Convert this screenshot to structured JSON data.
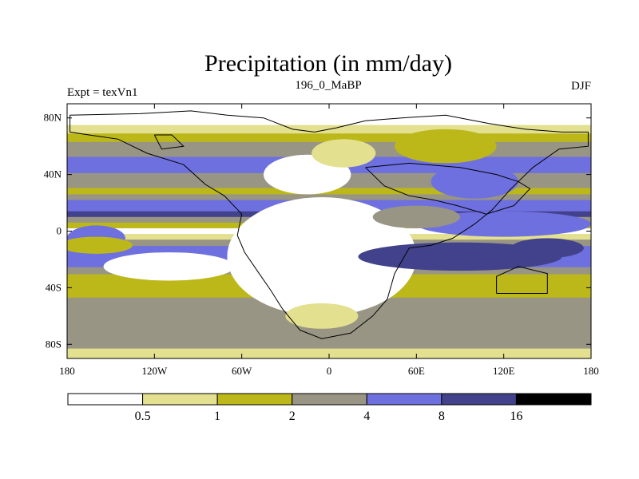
{
  "chart_data": {
    "type": "heatmap",
    "title": "Precipitation (in mm/day)",
    "left_label": "Expt = texVn1",
    "center_label": "196_0_MaBP",
    "right_label": "DJF",
    "x_ticks": [
      "180",
      "120W",
      "60W",
      "0",
      "60E",
      "120E",
      "180"
    ],
    "x_tick_values": [
      -180,
      -120,
      -60,
      0,
      60,
      120,
      180
    ],
    "y_ticks": [
      "80N",
      "40N",
      "0",
      "40S",
      "80S"
    ],
    "y_tick_values": [
      80,
      40,
      0,
      -40,
      -80
    ],
    "xlim": [
      -180,
      180
    ],
    "ylim": [
      -90,
      90
    ],
    "colorbar": {
      "levels": [
        "0.5",
        "1",
        "2",
        "4",
        "8",
        "16"
      ],
      "colors": [
        "#ffffff",
        "#e3e08f",
        "#bcb81a",
        "#999584",
        "#6f70e0",
        "#42428c",
        "#000000"
      ]
    },
    "bands": [
      {
        "lat": 85,
        "v": 0.3
      },
      {
        "lat": 78,
        "v": 0.4
      },
      {
        "lat": 72,
        "v": 0.8
      },
      {
        "lat": 66,
        "v": 1.5
      },
      {
        "lat": 60,
        "v": 2.5
      },
      {
        "lat": 55,
        "v": 3.2
      },
      {
        "lat": 50,
        "v": 4.5
      },
      {
        "lat": 44,
        "v": 6
      },
      {
        "lat": 38,
        "v": 3.5
      },
      {
        "lat": 33,
        "v": 2.2
      },
      {
        "lat": 28,
        "v": 1.4
      },
      {
        "lat": 24,
        "v": 2.5
      },
      {
        "lat": 20,
        "v": 4.5
      },
      {
        "lat": 16,
        "v": 6
      },
      {
        "lat": 12,
        "v": 10
      },
      {
        "lat": 8,
        "v": 3.5
      },
      {
        "lat": 4,
        "v": 1.5
      },
      {
        "lat": 0,
        "v": 0.4
      },
      {
        "lat": -4,
        "v": 0.8
      },
      {
        "lat": -8,
        "v": 3.5
      },
      {
        "lat": -13,
        "v": 5.5
      },
      {
        "lat": -18,
        "v": 6.5
      },
      {
        "lat": -23,
        "v": 5
      },
      {
        "lat": -28,
        "v": 2.5
      },
      {
        "lat": -33,
        "v": 1.5
      },
      {
        "lat": -38,
        "v": 1.2
      },
      {
        "lat": -44,
        "v": 1.5
      },
      {
        "lat": -50,
        "v": 2.5
      },
      {
        "lat": -56,
        "v": 3.5
      },
      {
        "lat": -62,
        "v": 3
      },
      {
        "lat": -68,
        "v": 2.5
      },
      {
        "lat": -74,
        "v": 3.5
      },
      {
        "lat": -80,
        "v": 2
      },
      {
        "lat": -86,
        "v": 0.8
      },
      {
        "lat": -90,
        "v": 0.6
      }
    ],
    "anomalies": [
      {
        "lon": -5,
        "lat": -18,
        "rlon": 65,
        "rlat": 42,
        "v": 0.2
      },
      {
        "lon": -15,
        "lat": 40,
        "rlon": 30,
        "rlat": 14,
        "v": 0.3
      },
      {
        "lon": -5,
        "lat": -60,
        "rlon": 25,
        "rlat": 9,
        "v": 0.9
      },
      {
        "lon": 90,
        "lat": -18,
        "rlon": 70,
        "rlat": 10,
        "v": 12
      },
      {
        "lon": 150,
        "lat": -12,
        "rlon": 25,
        "rlat": 7,
        "v": 12
      },
      {
        "lon": 120,
        "lat": 5,
        "rlon": 60,
        "rlat": 9,
        "v": 6
      },
      {
        "lon": 60,
        "lat": 10,
        "rlon": 30,
        "rlat": 8,
        "v": 2.5
      },
      {
        "lon": -110,
        "lat": -25,
        "rlon": 45,
        "rlat": 10,
        "v": 0.3
      },
      {
        "lon": -160,
        "lat": -5,
        "rlon": 20,
        "rlat": 9,
        "v": 4
      },
      {
        "lon": 100,
        "lat": 35,
        "rlon": 30,
        "rlat": 12,
        "v": 5.5
      },
      {
        "lon": 80,
        "lat": 60,
        "rlon": 35,
        "rlat": 12,
        "v": 1.5
      },
      {
        "lon": 10,
        "lat": 55,
        "rlon": 22,
        "rlat": 10,
        "v": 0.8
      },
      {
        "lon": -160,
        "lat": -10,
        "rlon": 25,
        "rlat": 6,
        "v": 1.5
      }
    ],
    "continent_outlines": [
      [
        [
          -130,
          83
        ],
        [
          -95,
          85
        ],
        [
          -70,
          82
        ],
        [
          -45,
          80
        ],
        [
          -25,
          72
        ],
        [
          -10,
          70
        ],
        [
          5,
          73
        ],
        [
          25,
          78
        ],
        [
          50,
          80
        ],
        [
          80,
          82
        ],
        [
          110,
          76
        ],
        [
          135,
          72
        ],
        [
          160,
          70
        ],
        [
          178,
          70
        ],
        [
          178,
          60
        ],
        [
          158,
          58
        ],
        [
          140,
          45
        ],
        [
          125,
          30
        ],
        [
          112,
          15
        ],
        [
          100,
          5
        ],
        [
          85,
          -5
        ],
        [
          70,
          -10
        ],
        [
          55,
          -12
        ],
        [
          45,
          -30
        ],
        [
          40,
          -48
        ],
        [
          30,
          -60
        ],
        [
          15,
          -72
        ],
        [
          -5,
          -76
        ],
        [
          -20,
          -70
        ],
        [
          -32,
          -55
        ],
        [
          -40,
          -42
        ],
        [
          -48,
          -30
        ],
        [
          -58,
          -15
        ],
        [
          -63,
          -3
        ],
        [
          -60,
          12
        ],
        [
          -72,
          25
        ],
        [
          -85,
          33
        ],
        [
          -100,
          47
        ],
        [
          -125,
          55
        ],
        [
          -145,
          65
        ],
        [
          -165,
          68
        ],
        [
          -178,
          70
        ],
        [
          -178,
          82
        ],
        [
          -130,
          83
        ]
      ],
      [
        [
          25,
          45
        ],
        [
          55,
          48
        ],
        [
          90,
          45
        ],
        [
          115,
          40
        ],
        [
          130,
          35
        ],
        [
          138,
          30
        ],
        [
          127,
          18
        ],
        [
          108,
          12
        ],
        [
          88,
          18
        ],
        [
          72,
          22
        ],
        [
          55,
          25
        ],
        [
          38,
          32
        ],
        [
          25,
          45
        ]
      ],
      [
        [
          -120,
          68
        ],
        [
          -108,
          68
        ],
        [
          -100,
          60
        ],
        [
          -115,
          58
        ],
        [
          -120,
          68
        ]
      ],
      [
        [
          115,
          -44
        ],
        [
          150,
          -44
        ],
        [
          150,
          -30
        ],
        [
          130,
          -25
        ],
        [
          115,
          -32
        ],
        [
          115,
          -44
        ]
      ]
    ]
  }
}
